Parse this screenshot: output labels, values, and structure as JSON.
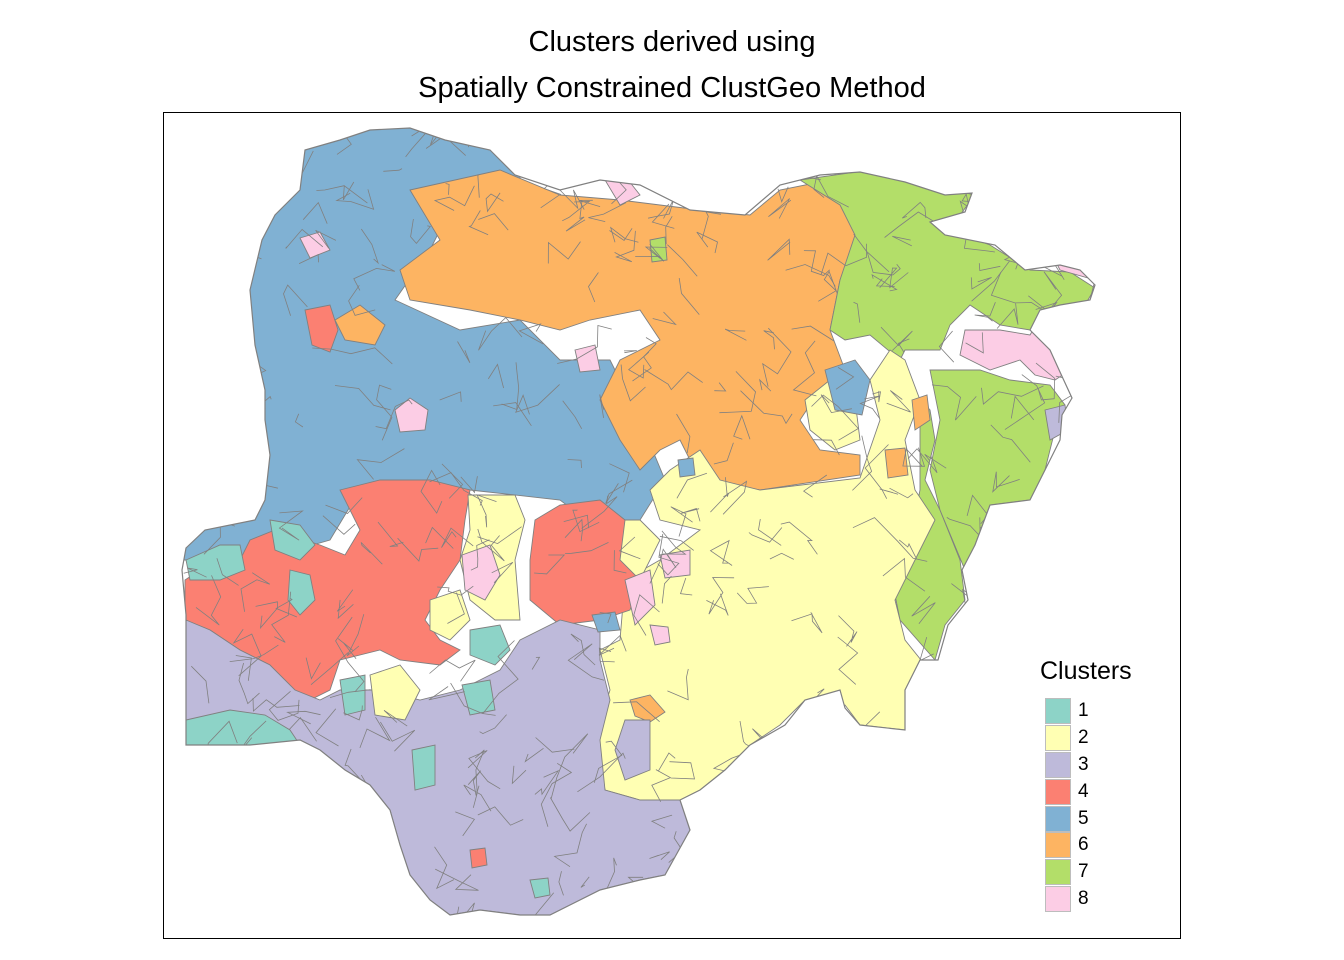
{
  "title": {
    "line1": "Clusters derived using",
    "line2": "Spatially Constrained ClustGeo Method"
  },
  "legend": {
    "title": "Clusters",
    "items": [
      {
        "label": "1",
        "color": "#8DD3C7"
      },
      {
        "label": "2",
        "color": "#FFFFB3"
      },
      {
        "label": "3",
        "color": "#BEBADA"
      },
      {
        "label": "4",
        "color": "#FB8072"
      },
      {
        "label": "5",
        "color": "#80B1D3"
      },
      {
        "label": "6",
        "color": "#FDB462"
      },
      {
        "label": "7",
        "color": "#B3DE69"
      },
      {
        "label": "8",
        "color": "#FCCDE5"
      }
    ]
  },
  "colors": {
    "boundary": "#808080",
    "frame": "#000000"
  }
}
